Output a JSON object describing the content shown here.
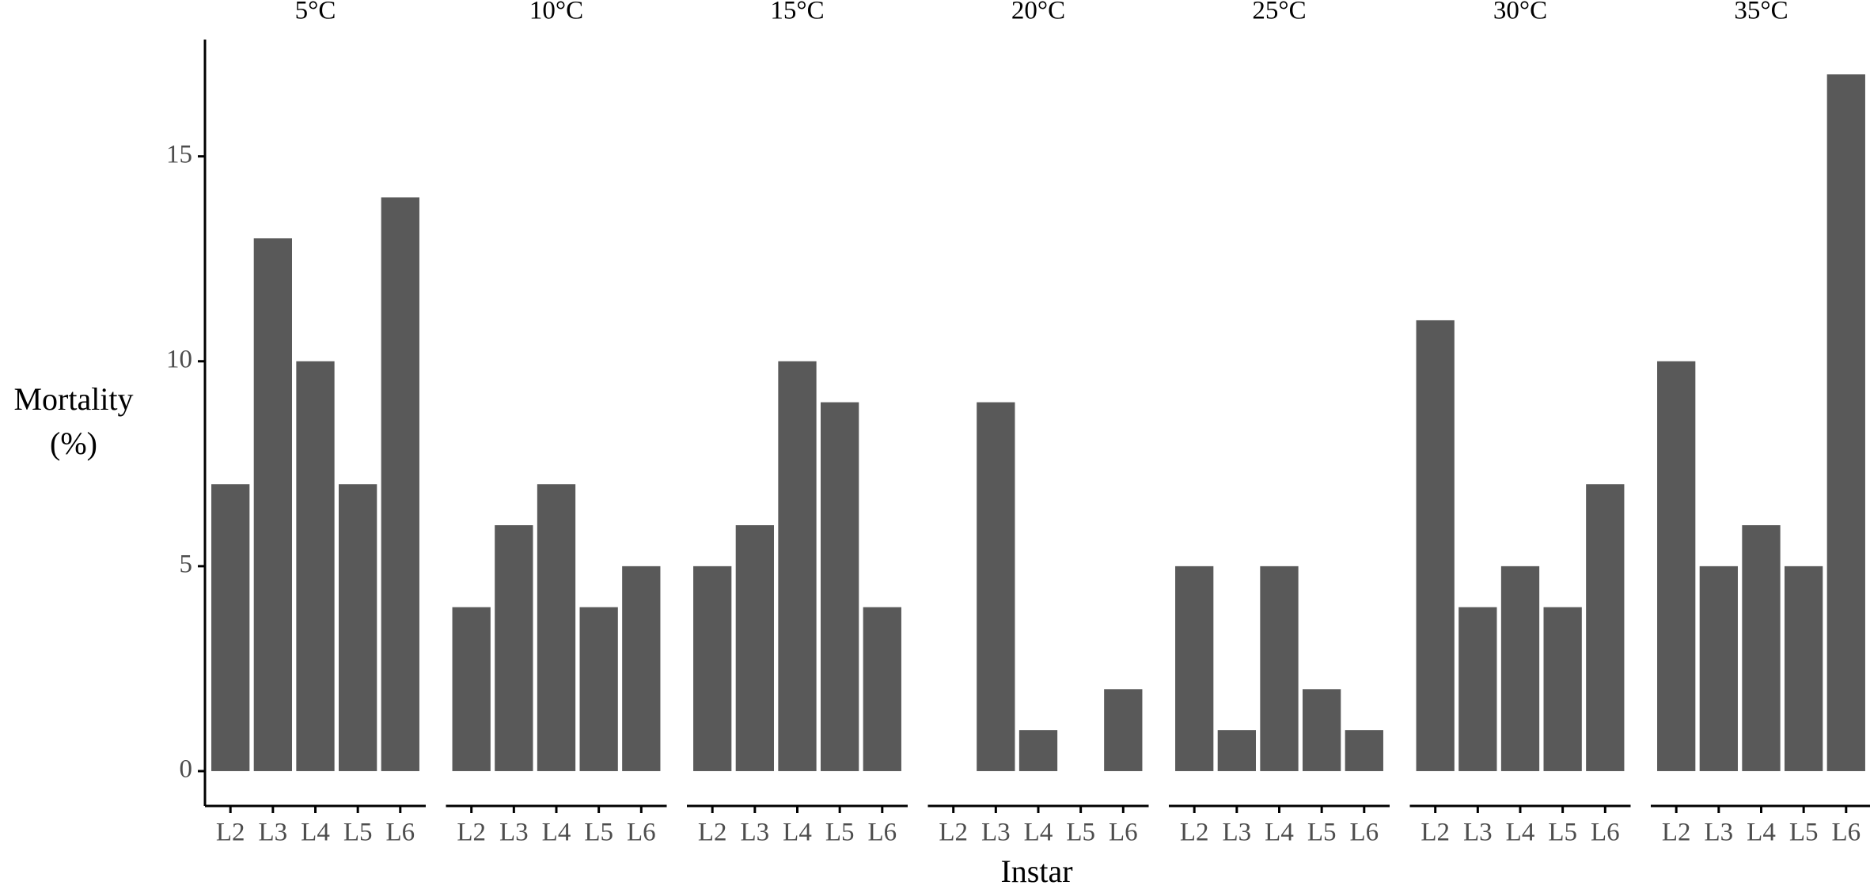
{
  "chart_data": {
    "type": "bar",
    "ylabel": [
      "Mortality",
      "(%)"
    ],
    "xlabel": "Instar",
    "color": "#595959",
    "ylim": [
      -0.85,
      17.85
    ],
    "yticks": [
      0,
      5,
      10,
      15
    ],
    "panels": [
      {
        "title": "5°C",
        "categories": [
          "L2",
          "L3",
          "L4",
          "L5",
          "L6"
        ],
        "values": [
          7,
          13,
          10,
          7,
          14
        ]
      },
      {
        "title": "10°C",
        "categories": [
          "L2",
          "L3",
          "L4",
          "L5",
          "L6"
        ],
        "values": [
          4,
          6,
          7,
          4,
          5
        ]
      },
      {
        "title": "15°C",
        "categories": [
          "L2",
          "L3",
          "L4",
          "L5",
          "L6"
        ],
        "values": [
          5,
          6,
          10,
          9,
          4
        ]
      },
      {
        "title": "20°C",
        "categories": [
          "L2",
          "L3",
          "L4",
          "L5",
          "L6"
        ],
        "values": [
          0,
          9,
          1,
          0,
          2
        ]
      },
      {
        "title": "25°C",
        "categories": [
          "L2",
          "L3",
          "L4",
          "L5",
          "L6"
        ],
        "values": [
          5,
          1,
          5,
          2,
          1
        ]
      },
      {
        "title": "30°C",
        "categories": [
          "L2",
          "L3",
          "L4",
          "L5",
          "L6"
        ],
        "values": [
          11,
          4,
          5,
          4,
          7
        ]
      },
      {
        "title": "35°C",
        "categories": [
          "L2",
          "L3",
          "L4",
          "L5",
          "L6"
        ],
        "values": [
          10,
          5,
          6,
          5,
          17
        ]
      }
    ]
  }
}
